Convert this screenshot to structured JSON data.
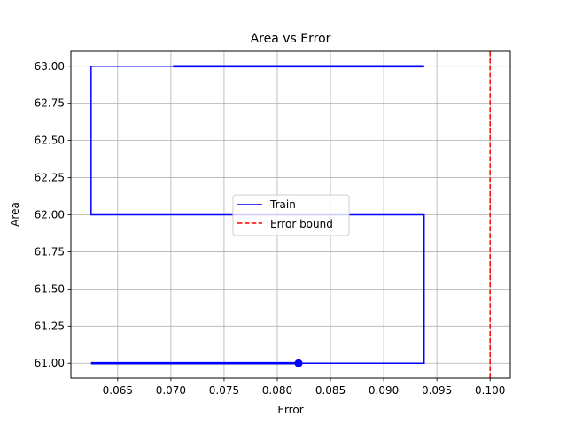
{
  "chart_data": {
    "type": "line",
    "title": "Area vs Error",
    "xlabel": "Error",
    "ylabel": "Area",
    "xlim": [
      0.0606,
      0.1019
    ],
    "ylim": [
      60.9,
      63.1
    ],
    "xticks": [
      0.065,
      0.07,
      0.075,
      0.08,
      0.085,
      0.09,
      0.095,
      0.1
    ],
    "xtick_labels": [
      "0.065",
      "0.070",
      "0.075",
      "0.080",
      "0.085",
      "0.090",
      "0.095",
      "0.100"
    ],
    "yticks": [
      61.0,
      61.25,
      61.5,
      61.75,
      62.0,
      62.25,
      62.5,
      62.75,
      63.0
    ],
    "ytick_labels": [
      "61.00",
      "61.25",
      "61.50",
      "61.75",
      "62.00",
      "62.25",
      "62.50",
      "62.75",
      "63.00"
    ],
    "grid": true,
    "legend_position": "center",
    "series": [
      {
        "name": "Train",
        "color": "#0000ff",
        "style": "solid",
        "x": [
          0.0625,
          0.082,
          0.0938,
          0.0938,
          0.0625,
          0.0625,
          0.0938,
          0.0702
        ],
        "y": [
          61.0,
          61.0,
          61.0,
          62.0,
          62.0,
          63.0,
          63.0,
          63.0
        ]
      },
      {
        "name": "Error bound",
        "color": "#ff0000",
        "style": "dashed",
        "vline_x": 0.1
      }
    ],
    "marker": {
      "x": 0.082,
      "y": 61.0,
      "color": "#0000ff"
    },
    "thick_segments": [
      {
        "x": [
          0.0625,
          0.082
        ],
        "y": [
          61.0,
          61.0
        ]
      },
      {
        "x": [
          0.0702,
          0.0938
        ],
        "y": [
          63.0,
          63.0
        ]
      }
    ]
  }
}
